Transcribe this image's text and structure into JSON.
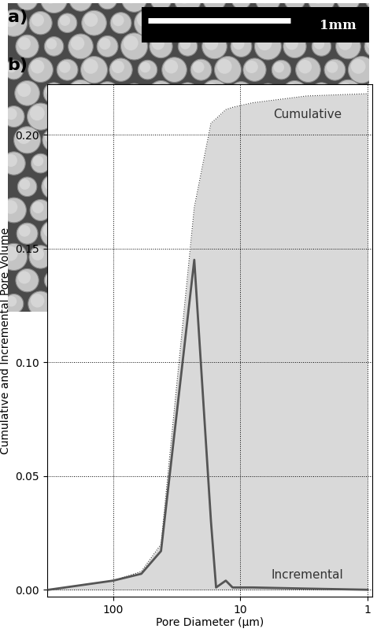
{
  "image": {
    "label": "a)",
    "scale_bar": "1mm"
  },
  "chart_data": {
    "type": "line",
    "panel_label": "b)",
    "xlabel": "Pore Diameter (μm)",
    "ylabel": "Cumulative and Incremental Pore Volume",
    "x": [
      320,
      100,
      60,
      42,
      23,
      17,
      15.5,
      13,
      11.5,
      8,
      3,
      1
    ],
    "series": [
      {
        "name": "Cumulative",
        "type": "area",
        "color": "#333333",
        "line_style": "dotted",
        "values": [
          0,
          0.004,
          0.008,
          0.02,
          0.168,
          0.205,
          0.207,
          0.211,
          0.212,
          0.214,
          0.217,
          0.218
        ]
      },
      {
        "name": "Incremental",
        "type": "line",
        "color": "#555555",
        "line_style": "solid",
        "values": [
          0,
          0.004,
          0.007,
          0.017,
          0.145,
          0.03,
          0.001,
          0.004,
          0.001,
          0.001,
          0.0005,
          0
        ]
      }
    ],
    "xlim": [
      330,
      0.92
    ],
    "ylim": [
      -0.003,
      0.222
    ],
    "xticks": [
      100,
      10,
      1
    ],
    "yticks": [
      {
        "value": 0.0,
        "label": "0.00"
      },
      {
        "value": 0.05,
        "label": "0.05"
      },
      {
        "value": 0.1,
        "label": "0.10"
      },
      {
        "value": 0.15,
        "label": "0.15"
      },
      {
        "value": 0.2,
        "label": "0.20"
      }
    ],
    "log": "x",
    "grid": true
  }
}
